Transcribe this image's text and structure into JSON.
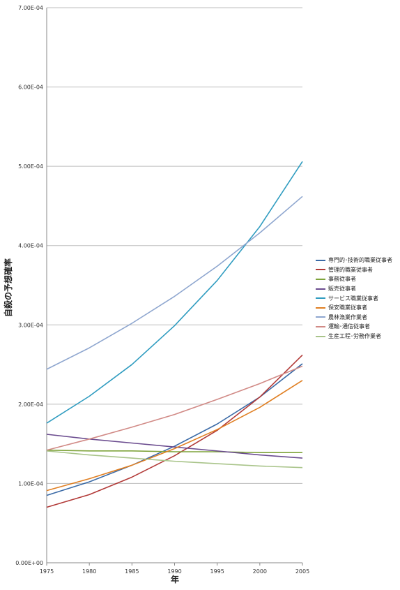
{
  "chart_data": {
    "type": "line",
    "title": "",
    "xlabel": "年",
    "ylabel": "自殺の予想確率",
    "x": [
      1975,
      1980,
      1985,
      1990,
      1995,
      2000,
      2005
    ],
    "x_tick_labels": [
      "1975",
      "1980",
      "1985",
      "1990",
      "1995",
      "2000",
      "2005"
    ],
    "y_tick_labels": [
      "0.00E+00",
      "1.00E-04",
      "2.00E-04",
      "3.00E-04",
      "4.00E-04",
      "5.00E-04",
      "6.00E-04",
      "7.00E-04"
    ],
    "xlim": [
      1975,
      2005
    ],
    "ylim": [
      0,
      0.0007
    ],
    "grid": true,
    "legend_position": "right",
    "series": [
      {
        "name": "専門的･技術的職業従事者",
        "color": "#3a6aa6",
        "values": [
          8.5e-05,
          0.000102,
          0.000123,
          0.000147,
          0.000175,
          0.000209,
          0.000251
        ]
      },
      {
        "name": "管理的職業従事者",
        "color": "#b23a38",
        "values": [
          7e-05,
          8.6e-05,
          0.000108,
          0.000135,
          0.000167,
          0.000209,
          0.000262
        ]
      },
      {
        "name": "事務従事者",
        "color": "#7ea33a",
        "values": [
          0.000142,
          0.000141,
          0.000141,
          0.00014,
          0.00014,
          0.000139,
          0.000139
        ]
      },
      {
        "name": "販売従事者",
        "color": "#6b4c8f",
        "values": [
          0.000162,
          0.000156,
          0.000151,
          0.000146,
          0.000141,
          0.000136,
          0.000132
        ]
      },
      {
        "name": "サービス職業従事者",
        "color": "#2f9cc0",
        "values": [
          0.000176,
          0.00021,
          0.00025,
          0.000299,
          0.000356,
          0.000424,
          0.000506
        ]
      },
      {
        "name": "保安職業従事者",
        "color": "#e07f22",
        "values": [
          9.1e-05,
          0.000106,
          0.000123,
          0.000144,
          0.000168,
          0.000196,
          0.00023
        ]
      },
      {
        "name": "農林漁業作業者",
        "color": "#8ea6cf",
        "values": [
          0.000244,
          0.000271,
          0.000302,
          0.000336,
          0.000374,
          0.000416,
          0.000462
        ]
      },
      {
        "name": "運輸･通信従事者",
        "color": "#d18a86",
        "values": [
          0.000142,
          0.000156,
          0.000171,
          0.000187,
          0.000206,
          0.000226,
          0.000248
        ]
      },
      {
        "name": "生産工程･労務作業者",
        "color": "#a9c48a",
        "values": [
          0.000141,
          0.000136,
          0.000132,
          0.000128,
          0.000125,
          0.000122,
          0.00012
        ]
      }
    ]
  }
}
